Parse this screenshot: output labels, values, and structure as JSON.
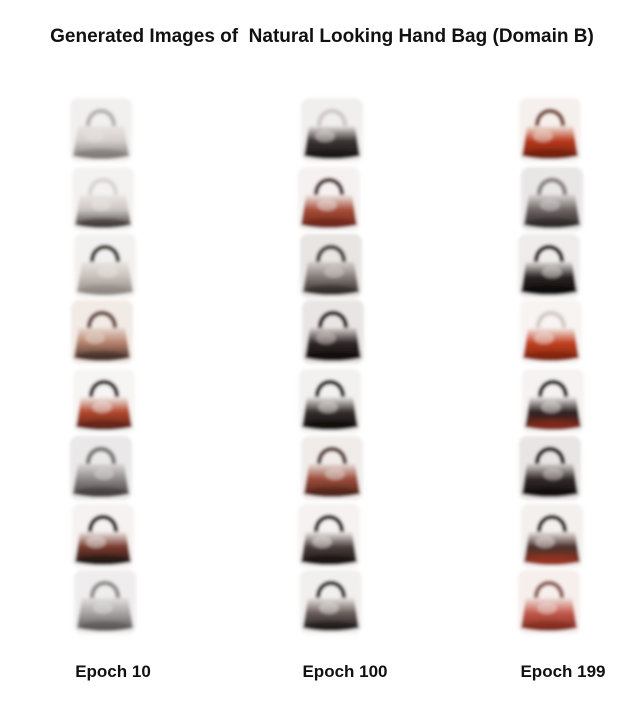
{
  "title": "Generated Images of  Natural Looking Hand Bag (Domain B)",
  "columns": [
    {
      "label": "Epoch 10",
      "bags": [
        {
          "body": "#d4cfcd",
          "handle": "#b8b2b0",
          "accent": "#e8e4e2",
          "dark": "#7a7472"
        },
        {
          "body": "#c9c4c2",
          "handle": "#d8d4d2",
          "accent": "#ebe7e5",
          "dark": "#3a3230"
        },
        {
          "body": "#c7c0ba",
          "handle": "#3b3431",
          "accent": "#e9e5e2",
          "dark": "#8c8580"
        },
        {
          "body": "#b5826c",
          "handle": "#6b4e44",
          "accent": "#e7d8cf",
          "dark": "#3e2a24"
        },
        {
          "body": "#b2472d",
          "handle": "#2f2220",
          "accent": "#f0ece9",
          "dark": "#5c2117"
        },
        {
          "body": "#8f8a89",
          "handle": "#7a7574",
          "accent": "#d9d6d5",
          "dark": "#3f3b3a"
        },
        {
          "body": "#7a3a2e",
          "handle": "#221b1a",
          "accent": "#ece7e5",
          "dark": "#1d1514"
        },
        {
          "body": "#a7a4a3",
          "handle": "#908c8b",
          "accent": "#e2dfde",
          "dark": "#585453"
        }
      ]
    },
    {
      "label": "Epoch 100",
      "bags": [
        {
          "body": "#3a3433",
          "handle": "#cfc9c7",
          "accent": "#e6e2e0",
          "dark": "#1a1515"
        },
        {
          "body": "#a74d38",
          "handle": "#4a3733",
          "accent": "#ede6e3",
          "dark": "#6b2517"
        },
        {
          "body": "#867d79",
          "handle": "#473f3c",
          "accent": "#d5cfcc",
          "dark": "#2c2624"
        },
        {
          "body": "#2e2727",
          "handle": "#201b1b",
          "accent": "#d7d0cd",
          "dark": "#100c0c"
        },
        {
          "body": "#362e2d",
          "handle": "#1f1a19",
          "accent": "#e9e5e3",
          "dark": "#0f0b0b"
        },
        {
          "body": "#9c4c3a",
          "handle": "#5a3f38",
          "accent": "#e5ddd9",
          "dark": "#4d2219"
        },
        {
          "body": "#4b3f3d",
          "handle": "#231c1b",
          "accent": "#ece7e5",
          "dark": "#160f0e"
        },
        {
          "body": "#6a5f5c",
          "handle": "#322b2a",
          "accent": "#e8e3e1",
          "dark": "#1b1616"
        }
      ]
    },
    {
      "label": "Epoch 199",
      "bags": [
        {
          "body": "#b9391c",
          "handle": "#7a4a3c",
          "accent": "#efe4dd",
          "dark": "#6d1e0e"
        },
        {
          "body": "#6d6564",
          "handle": "#8a8281",
          "accent": "#d7d2d1",
          "dark": "#2a2424"
        },
        {
          "body": "#2c2424",
          "handle": "#1a1515",
          "accent": "#e1dcda",
          "dark": "#0c0909"
        },
        {
          "body": "#c2401f",
          "handle": "#d5cbc7",
          "accent": "#f2ebe7",
          "dark": "#7c230f"
        },
        {
          "body": "#2a2222",
          "handle": "#161212",
          "accent": "#ece8e6",
          "dark": "#8a2a19"
        },
        {
          "body": "#322a29",
          "handle": "#1d1818",
          "accent": "#d5cfcd",
          "dark": "#100c0c"
        },
        {
          "body": "#4a2f2a",
          "handle": "#2a2120",
          "accent": "#e9e3e0",
          "dark": "#9d3420"
        },
        {
          "body": "#c2594a",
          "handle": "#8d5e54",
          "accent": "#efe2dd",
          "dark": "#7e2a1e"
        }
      ]
    }
  ]
}
